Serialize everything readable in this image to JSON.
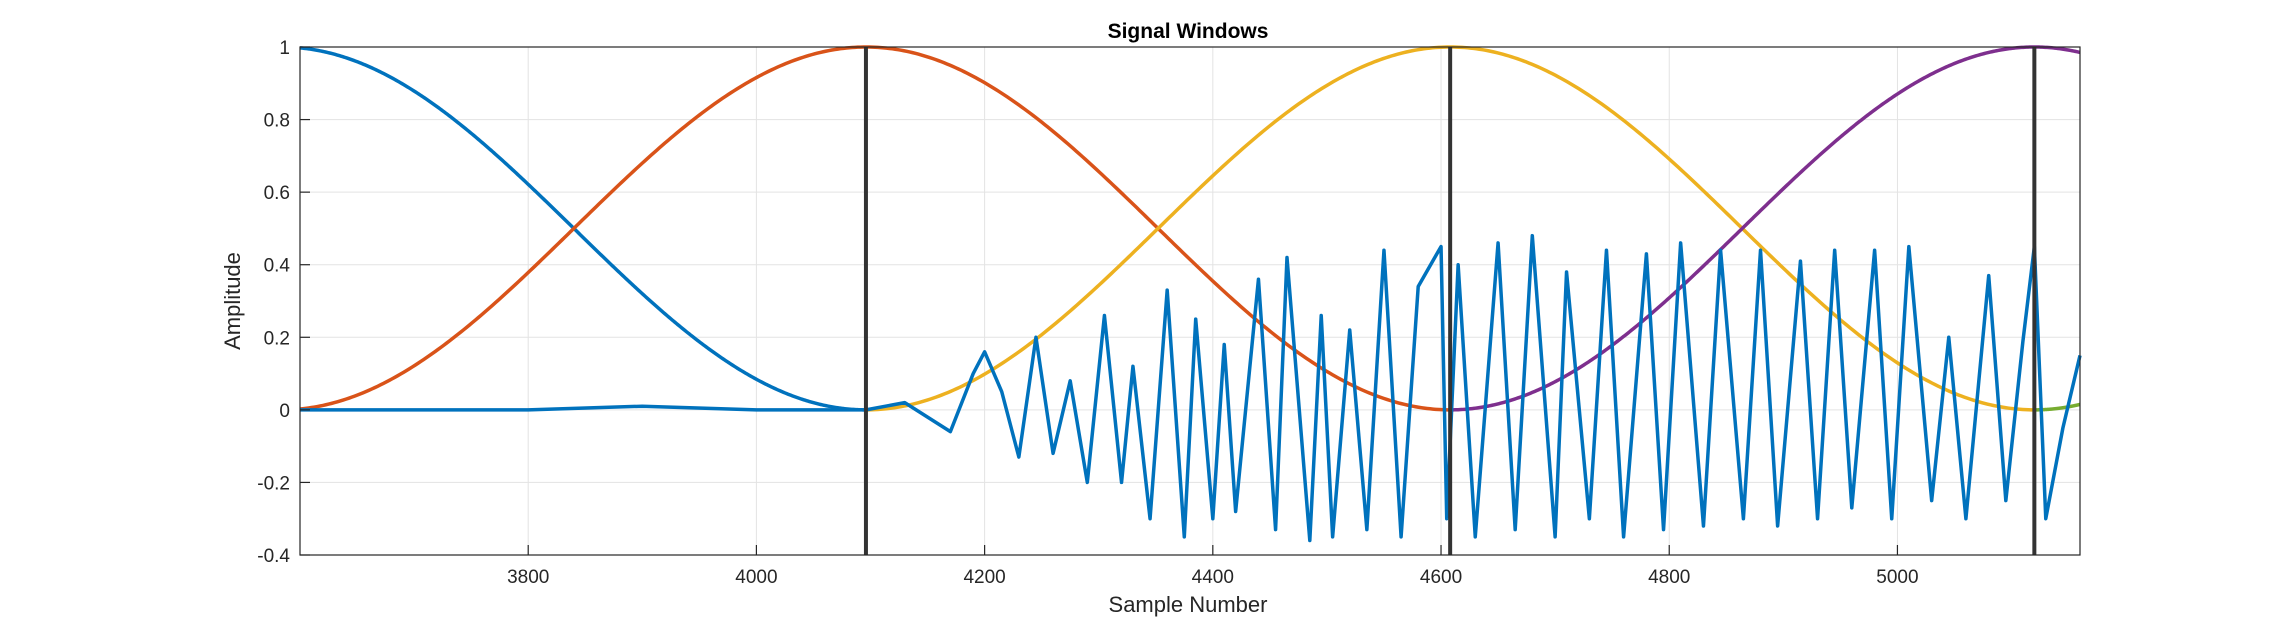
{
  "chart_data": {
    "type": "line",
    "title": "Signal Windows",
    "xlabel": "Sample Number",
    "ylabel": "Amplitude",
    "xlim": [
      3600,
      5160
    ],
    "ylim": [
      -0.4,
      1
    ],
    "xticks": [
      3800,
      4000,
      4200,
      4400,
      4600,
      4800,
      5000
    ],
    "xtick_labels": [
      "3800",
      "4000",
      "4200",
      "4400",
      "4600",
      "4800",
      "5000"
    ],
    "yticks": [
      -0.4,
      -0.2,
      0,
      0.2,
      0.4,
      0.6,
      0.8,
      1
    ],
    "ytick_labels": [
      "-0.4",
      "-0.2",
      "0",
      "0.2",
      "0.4",
      "0.6",
      "0.8",
      "1"
    ],
    "grid": true,
    "window_length": 1024,
    "vertical_lines": [
      4096,
      4608,
      5120
    ],
    "windows": [
      {
        "center": 3584,
        "color": "#0072BD"
      },
      {
        "center": 4096,
        "color": "#D95319"
      },
      {
        "center": 4608,
        "color": "#EDB120"
      },
      {
        "center": 5120,
        "color": "#7E2F8E"
      },
      {
        "center": 5632,
        "color": "#77AC30"
      }
    ],
    "signal": {
      "color": "#0072BD",
      "x": [
        3600,
        3700,
        3800,
        3900,
        4000,
        4050,
        4096,
        4130,
        4150,
        4170,
        4190,
        4200,
        4215,
        4230,
        4245,
        4260,
        4275,
        4290,
        4305,
        4320,
        4330,
        4345,
        4360,
        4375,
        4385,
        4400,
        4410,
        4420,
        4440,
        4455,
        4465,
        4485,
        4495,
        4505,
        4520,
        4535,
        4550,
        4565,
        4580,
        4600,
        4605,
        4615,
        4630,
        4650,
        4665,
        4680,
        4700,
        4710,
        4730,
        4745,
        4760,
        4780,
        4795,
        4810,
        4830,
        4845,
        4865,
        4880,
        4895,
        4915,
        4930,
        4945,
        4960,
        4980,
        4995,
        5010,
        5030,
        5045,
        5060,
        5080,
        5095,
        5110,
        5120,
        5130,
        5145,
        5160
      ],
      "y": [
        0.0,
        0.0,
        0.0,
        0.01,
        0.0,
        0.0,
        0.0,
        0.02,
        -0.02,
        -0.06,
        0.1,
        0.16,
        0.05,
        -0.13,
        0.2,
        -0.12,
        0.08,
        -0.2,
        0.26,
        -0.2,
        0.12,
        -0.3,
        0.33,
        -0.35,
        0.25,
        -0.3,
        0.18,
        -0.28,
        0.36,
        -0.33,
        0.42,
        -0.36,
        0.26,
        -0.35,
        0.22,
        -0.33,
        0.44,
        -0.35,
        0.34,
        0.45,
        -0.3,
        0.4,
        -0.35,
        0.46,
        -0.33,
        0.48,
        -0.35,
        0.38,
        -0.3,
        0.44,
        -0.35,
        0.43,
        -0.33,
        0.46,
        -0.32,
        0.44,
        -0.3,
        0.44,
        -0.32,
        0.41,
        -0.3,
        0.44,
        -0.27,
        0.44,
        -0.3,
        0.45,
        -0.25,
        0.2,
        -0.3,
        0.37,
        -0.25,
        0.19,
        0.45,
        -0.3,
        -0.05,
        0.15
      ]
    }
  }
}
